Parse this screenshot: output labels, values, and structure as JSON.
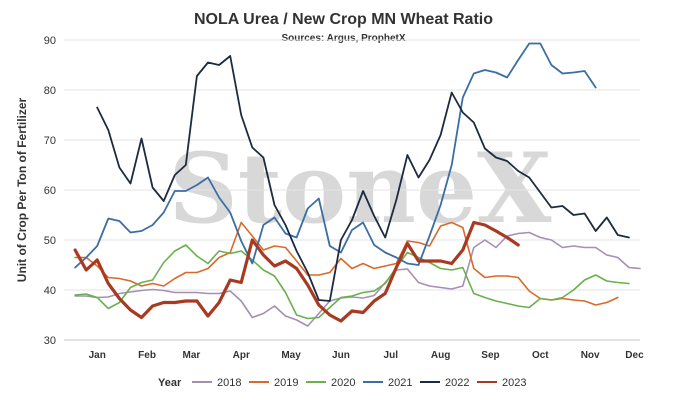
{
  "chart_data": {
    "type": "line",
    "title": "NOLA Urea / New Crop MN Wheat Ratio",
    "subtitle": "Sources: Argus, ProphetX",
    "ylabel": "Unit of Crop Per Ton of Fertilizer",
    "ylim": [
      30,
      90
    ],
    "yticks": [
      30,
      40,
      50,
      60,
      70,
      80,
      90
    ],
    "xlim": [
      0,
      52
    ],
    "month_ticks": [
      {
        "label": "Jan",
        "week": 3
      },
      {
        "label": "Feb",
        "week": 7.5
      },
      {
        "label": "Mar",
        "week": 11.5
      },
      {
        "label": "Apr",
        "week": 16
      },
      {
        "label": "May",
        "week": 20.5
      },
      {
        "label": "Jun",
        "week": 25
      },
      {
        "label": "Jul",
        "week": 29.5
      },
      {
        "label": "Aug",
        "week": 34
      },
      {
        "label": "Sep",
        "week": 38.5
      },
      {
        "label": "Oct",
        "week": 43
      },
      {
        "label": "Nov",
        "week": 47.5
      },
      {
        "label": "Dec",
        "week": 51.5
      }
    ],
    "grid": true,
    "legend_title": "Year",
    "legend_position": "bottom",
    "watermark": "StoneX",
    "series": [
      {
        "name": "2018",
        "color": "#a58fb5",
        "width": 1.6,
        "start_week": 1,
        "values": [
          38.8,
          38.8,
          38.5,
          38.6,
          39.3,
          39.6,
          39.9,
          40.1,
          39.9,
          39.5,
          39.5,
          39.5,
          39.3,
          39.3,
          39.8,
          37.8,
          34.5,
          35.3,
          36.8,
          34.8,
          34.0,
          32.8,
          35.3,
          37.8,
          38.4,
          38.6,
          38.4,
          38.9,
          41.5,
          44.0,
          44.2,
          41.5,
          40.8,
          40.5,
          40.2,
          40.8,
          48.5,
          50.0,
          48.5,
          50.8,
          51.3,
          51.5,
          50.5,
          50.0,
          48.5,
          48.8,
          48.5,
          48.5,
          47.0,
          46.5,
          44.5,
          44.3
        ]
      },
      {
        "name": "2019",
        "color": "#d86a2b",
        "width": 1.6,
        "start_week": 1,
        "values": [
          46.5,
          46.5,
          44.8,
          42.5,
          42.3,
          41.8,
          40.8,
          41.3,
          40.8,
          42.3,
          43.5,
          43.5,
          44.3,
          46.5,
          47.5,
          53.5,
          50.8,
          48.0,
          48.8,
          48.5,
          45.8,
          43.0,
          43.0,
          43.5,
          46.3,
          44.3,
          45.3,
          44.3,
          44.8,
          45.3,
          49.8,
          49.5,
          48.8,
          52.8,
          53.5,
          52.5,
          44.3,
          42.5,
          42.8,
          42.8,
          42.5,
          39.8,
          38.3,
          38.0,
          38.3,
          38.0,
          37.8,
          37.0,
          37.5,
          38.5
        ]
      },
      {
        "name": "2020",
        "color": "#6ab04c",
        "width": 1.6,
        "start_week": 1,
        "values": [
          39.0,
          39.2,
          38.5,
          36.3,
          37.5,
          40.5,
          41.5,
          42.0,
          45.5,
          47.8,
          49.0,
          46.8,
          45.3,
          47.8,
          47.3,
          47.8,
          46.0,
          44.0,
          42.8,
          39.5,
          35.0,
          34.3,
          34.5,
          36.5,
          38.5,
          38.8,
          39.5,
          39.8,
          41.3,
          44.5,
          47.5,
          46.5,
          45.5,
          44.3,
          44.0,
          44.5,
          39.3,
          38.5,
          37.8,
          37.3,
          36.8,
          36.5,
          38.3,
          38.0,
          38.5,
          40.0,
          42.0,
          43.0,
          41.8,
          41.5,
          41.3
        ]
      },
      {
        "name": "2021",
        "color": "#3a6ea5",
        "width": 1.8,
        "start_week": 1,
        "values": [
          44.5,
          46.5,
          48.8,
          54.3,
          53.8,
          51.5,
          51.8,
          53.0,
          55.5,
          59.8,
          59.8,
          61.0,
          62.5,
          58.5,
          55.5,
          49.8,
          45.3,
          53.0,
          54.5,
          51.3,
          50.5,
          56.3,
          58.3,
          48.8,
          47.5,
          52.0,
          53.5,
          49.0,
          47.5,
          46.5,
          45.3,
          45.0,
          50.8,
          57.0,
          65.0,
          78.5,
          83.3,
          84.0,
          83.5,
          82.5,
          86.0,
          89.3,
          89.3,
          85.0,
          83.3,
          83.5,
          83.8,
          80.5
        ]
      },
      {
        "name": "2022",
        "color": "#1c2b40",
        "width": 1.8,
        "start_week": 3,
        "values": [
          76.5,
          72.0,
          64.5,
          61.3,
          70.3,
          60.5,
          57.8,
          63.0,
          65.0,
          82.8,
          85.5,
          85.0,
          86.8,
          75.0,
          68.5,
          66.5,
          57.0,
          53.0,
          47.8,
          43.5,
          38.0,
          37.8,
          50.0,
          54.0,
          59.8,
          54.8,
          50.5,
          58.0,
          67.0,
          62.5,
          66.0,
          71.0,
          79.5,
          75.5,
          73.5,
          68.3,
          66.5,
          65.8,
          63.8,
          62.5,
          59.5,
          56.5,
          56.8,
          55.0,
          55.3,
          51.8,
          54.5,
          51.0,
          50.5
        ]
      },
      {
        "name": "2023",
        "color": "#a83a22",
        "width": 3.2,
        "start_week": 1,
        "values": [
          48.0,
          44.0,
          46.0,
          41.3,
          38.3,
          36.0,
          34.5,
          36.8,
          37.5,
          37.5,
          37.8,
          37.8,
          34.8,
          37.5,
          42.0,
          41.5,
          50.0,
          47.0,
          44.8,
          45.8,
          44.3,
          41.0,
          37.0,
          35.0,
          33.8,
          35.8,
          35.5,
          37.8,
          39.3,
          44.5,
          49.3,
          45.8,
          45.8,
          45.8,
          45.3,
          48.0,
          53.5,
          53.0,
          51.8,
          50.5,
          49.0
        ]
      }
    ]
  }
}
